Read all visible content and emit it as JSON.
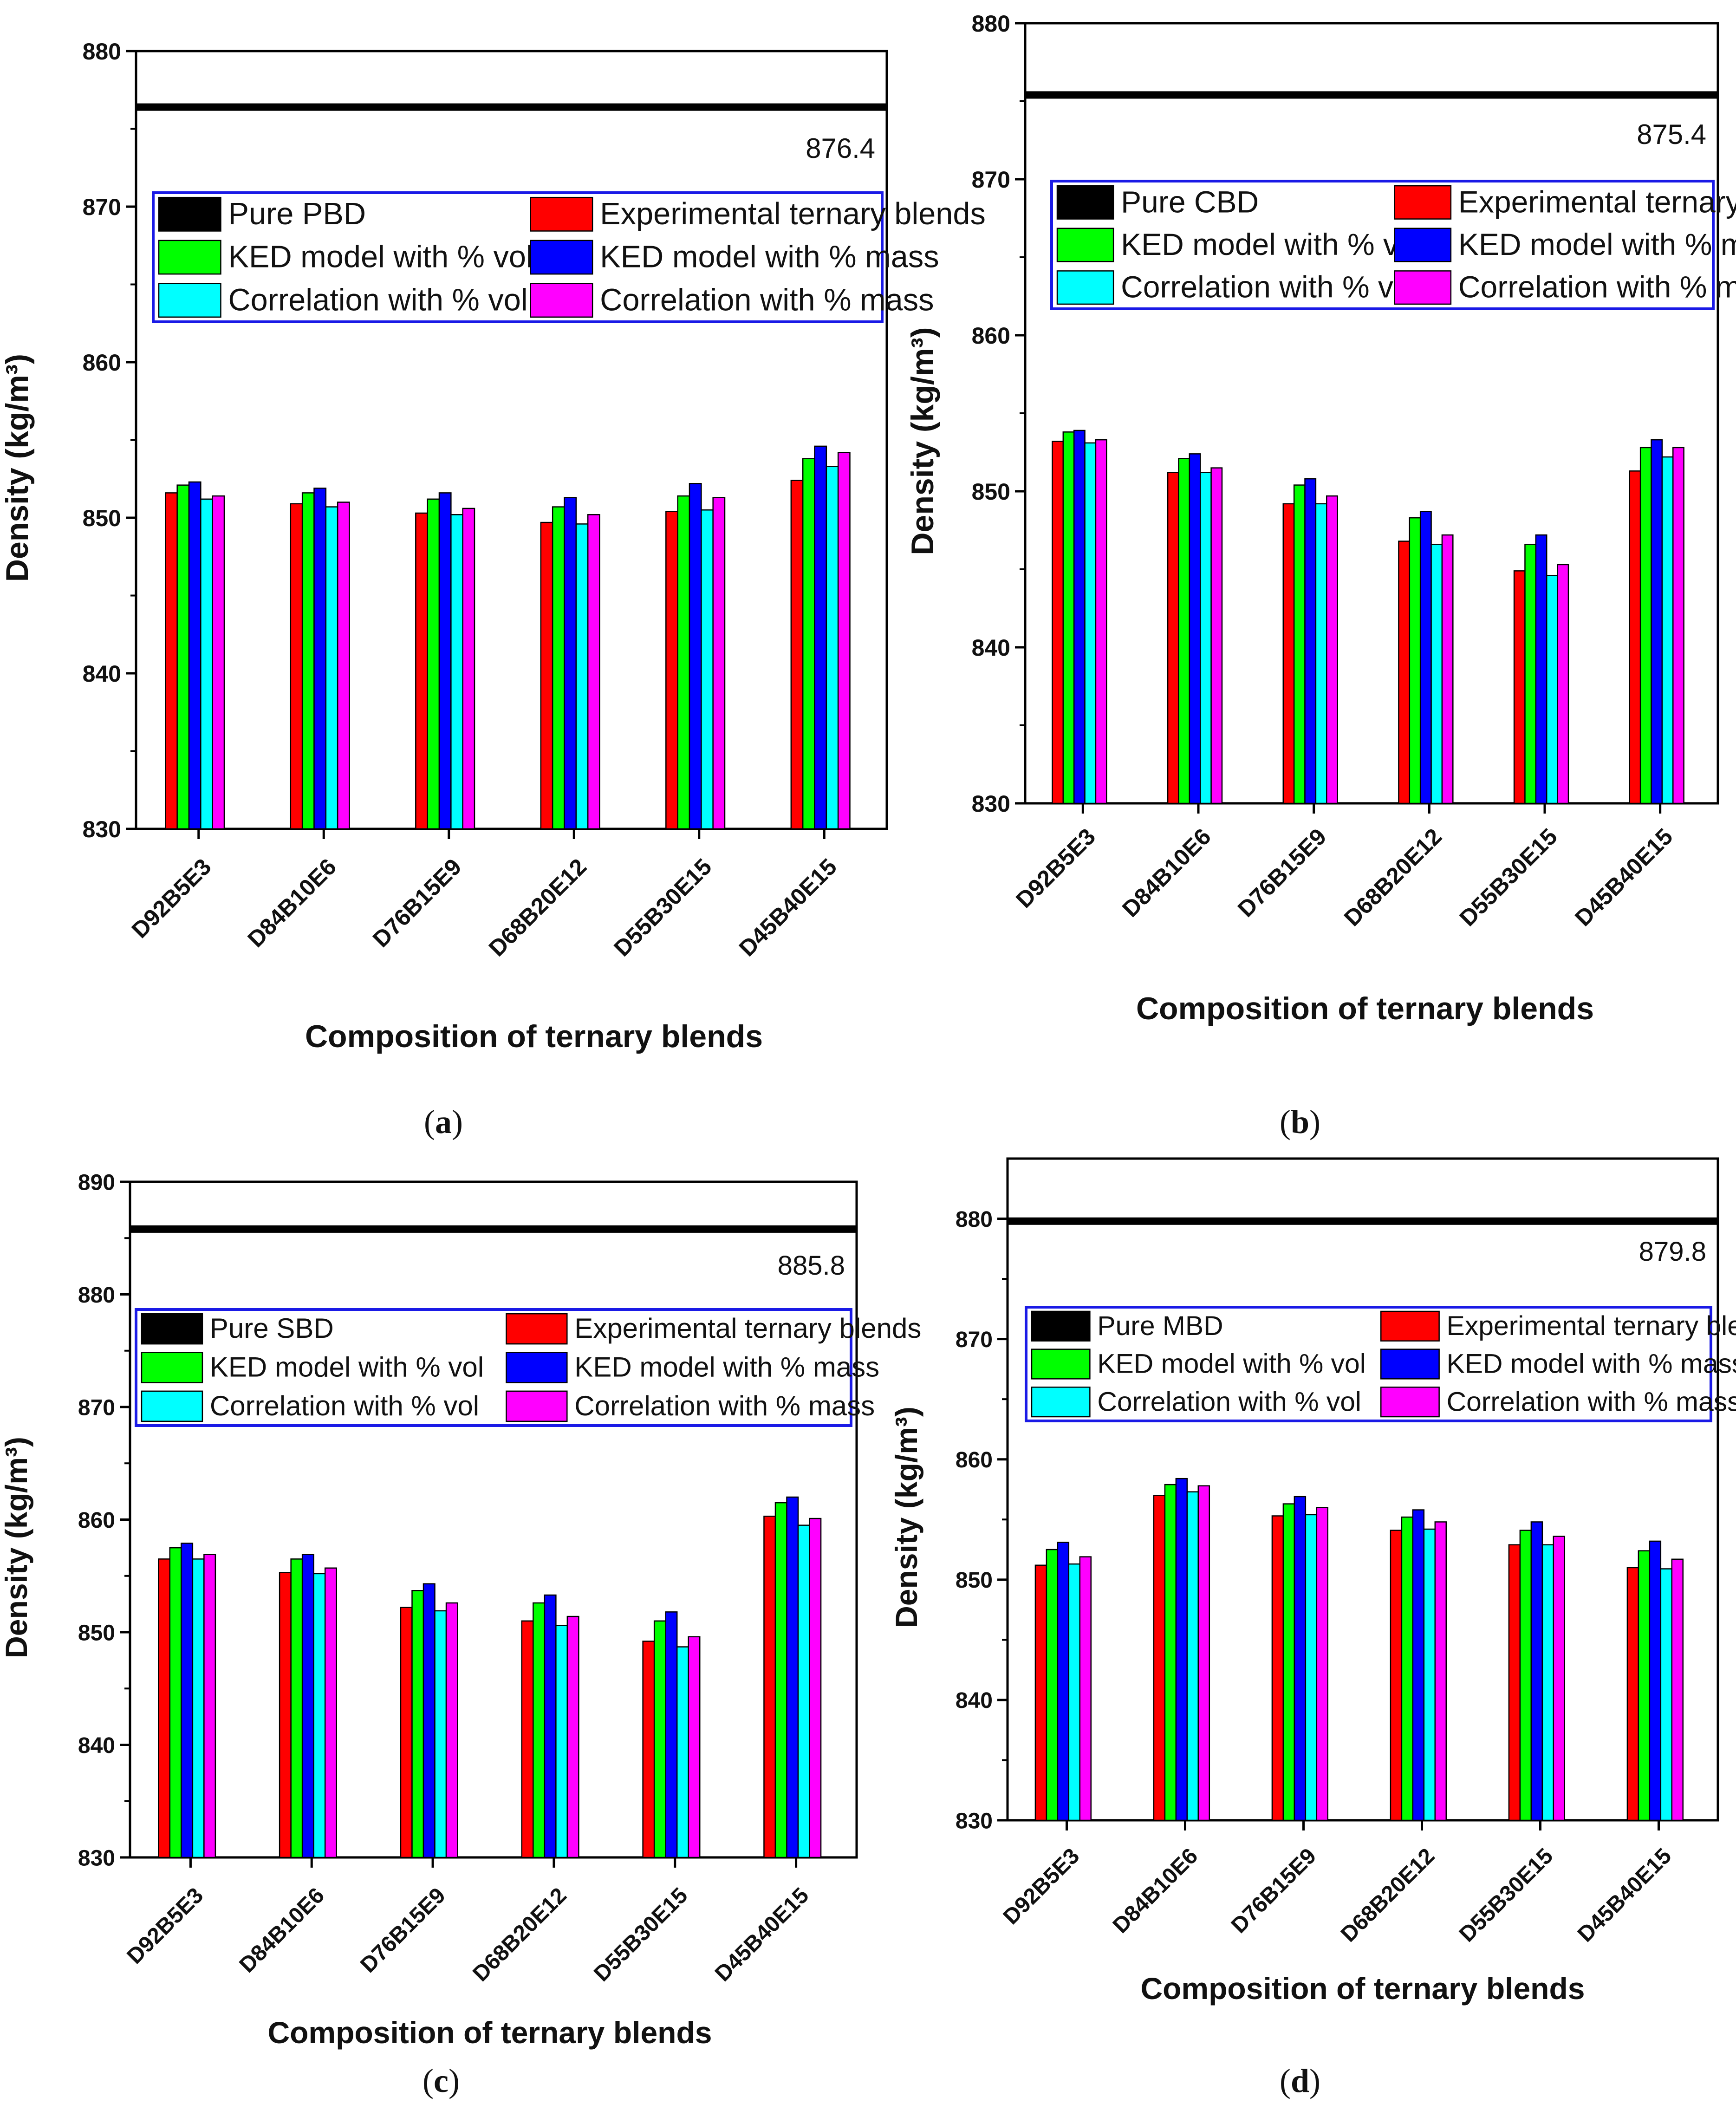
{
  "series_names": [
    "Experimental ternary blends",
    "KED model with % vol",
    "KED model with % mass",
    "Correlation with % vol",
    "Correlation with % mass"
  ],
  "colors": {
    "pure": "#000000",
    "experimental": "#ff0000",
    "ked_vol": "#00ff00",
    "ked_mass": "#0000ff",
    "corr_vol": "#00ffff",
    "corr_mass": "#ff00ff",
    "legend_border": "#1a1ae6"
  },
  "chart_data": [
    {
      "type": "bar",
      "panel_label": "a",
      "categories": [
        "D92B5E3",
        "D84B10E6",
        "D76B15E9",
        "D68B20E12",
        "D55B30E15",
        "D45B40E15"
      ],
      "xlabel": "Composition of ternary blends",
      "ylabel": "Density (kg/m³)",
      "ylim": [
        830,
        880
      ],
      "yticks": [
        830,
        840,
        850,
        860,
        870,
        880
      ],
      "reference": {
        "name": "Pure PBD",
        "value": 876.4,
        "label": "876.4"
      },
      "legend": [
        "Pure PBD",
        "Experimental ternary blends",
        "KED model with % vol",
        "KED model with % mass",
        "Correlation with % vol",
        "Correlation with % mass"
      ],
      "series": [
        {
          "name": "Experimental ternary blends",
          "values": [
            851.6,
            850.9,
            850.3,
            849.7,
            850.4,
            852.4
          ]
        },
        {
          "name": "KED model with % vol",
          "values": [
            852.1,
            851.6,
            851.2,
            850.7,
            851.4,
            853.8
          ]
        },
        {
          "name": "KED model with % mass",
          "values": [
            852.3,
            851.9,
            851.6,
            851.3,
            852.2,
            854.6
          ]
        },
        {
          "name": "Correlation with % vol",
          "values": [
            851.2,
            850.7,
            850.2,
            849.6,
            850.5,
            853.3
          ]
        },
        {
          "name": "Correlation with % mass",
          "values": [
            851.4,
            851.0,
            850.6,
            850.2,
            851.3,
            854.2
          ]
        }
      ]
    },
    {
      "type": "bar",
      "panel_label": "b",
      "categories": [
        "D92B5E3",
        "D84B10E6",
        "D76B15E9",
        "D68B20E12",
        "D55B30E15",
        "D45B40E15"
      ],
      "xlabel": "Composition of ternary blends",
      "ylabel": "Density (kg/m³)",
      "ylim": [
        830,
        880
      ],
      "yticks": [
        830,
        840,
        850,
        860,
        870,
        880
      ],
      "reference": {
        "name": "Pure CBD",
        "value": 875.4,
        "label": "875.4"
      },
      "legend": [
        "Pure CBD",
        "Experimental ternary blends",
        "KED model with % vol",
        "KED model with % mass",
        "Correlation with % vol",
        "Correlation with % mass"
      ],
      "series": [
        {
          "name": "Experimental ternary blends",
          "values": [
            853.2,
            851.2,
            849.2,
            846.8,
            844.9,
            851.3
          ]
        },
        {
          "name": "KED model with % vol",
          "values": [
            853.8,
            852.1,
            850.4,
            848.3,
            846.6,
            852.8
          ]
        },
        {
          "name": "KED model with % mass",
          "values": [
            853.9,
            852.4,
            850.8,
            848.7,
            847.2,
            853.3
          ]
        },
        {
          "name": "Correlation with % vol",
          "values": [
            853.1,
            851.2,
            849.2,
            846.6,
            844.6,
            852.2
          ]
        },
        {
          "name": "Correlation with % mass",
          "values": [
            853.3,
            851.5,
            849.7,
            847.2,
            845.3,
            852.8
          ]
        }
      ]
    },
    {
      "type": "bar",
      "panel_label": "c",
      "categories": [
        "D92B5E3",
        "D84B10E6",
        "D76B15E9",
        "D68B20E12",
        "D55B30E15",
        "D45B40E15"
      ],
      "xlabel": "Composition of ternary blends",
      "ylabel": "Density (kg/m³)",
      "ylim": [
        830,
        890
      ],
      "yticks": [
        830,
        840,
        850,
        860,
        870,
        880,
        890
      ],
      "reference": {
        "name": "Pure SBD",
        "value": 885.8,
        "label": "885.8"
      },
      "legend": [
        "Pure SBD",
        "Experimental ternary blends",
        "KED model with % vol",
        "KED model with % mass",
        "Correlation with % vol",
        "Correlation with % mass"
      ],
      "series": [
        {
          "name": "Experimental ternary blends",
          "values": [
            856.5,
            855.3,
            852.2,
            851.0,
            849.2,
            860.3
          ]
        },
        {
          "name": "KED model with % vol",
          "values": [
            857.5,
            856.5,
            853.7,
            852.6,
            851.0,
            861.5
          ]
        },
        {
          "name": "KED model with % mass",
          "values": [
            857.9,
            856.9,
            854.3,
            853.3,
            851.8,
            862.0
          ]
        },
        {
          "name": "Correlation with % vol",
          "values": [
            856.5,
            855.2,
            851.9,
            850.6,
            848.7,
            859.5
          ]
        },
        {
          "name": "Correlation with % mass",
          "values": [
            856.9,
            855.7,
            852.6,
            851.4,
            849.6,
            860.1
          ]
        }
      ]
    },
    {
      "type": "bar",
      "panel_label": "d",
      "categories": [
        "D92B5E3",
        "D84B10E6",
        "D76B15E9",
        "D68B20E12",
        "D55B30E15",
        "D45B40E15"
      ],
      "xlabel": "Composition of ternary blends",
      "ylabel": "Density (kg/m³)",
      "ylim": [
        830,
        885
      ],
      "yticks": [
        830,
        840,
        850,
        860,
        870,
        880
      ],
      "reference": {
        "name": "Pure MBD",
        "value": 879.8,
        "label": "879.8"
      },
      "legend": [
        "Pure MBD",
        "Experimental ternary blends",
        "KED model with % vol",
        "KED model with % mass",
        "Correlation with % vol",
        "Correlation with % mass"
      ],
      "series": [
        {
          "name": "Experimental ternary blends",
          "values": [
            851.2,
            857.0,
            855.3,
            854.1,
            852.9,
            851.0
          ]
        },
        {
          "name": "KED model with % vol",
          "values": [
            852.5,
            857.9,
            856.3,
            855.2,
            854.1,
            852.4
          ]
        },
        {
          "name": "KED model with % mass",
          "values": [
            853.1,
            858.4,
            856.9,
            855.8,
            854.8,
            853.2
          ]
        },
        {
          "name": "Correlation with % vol",
          "values": [
            851.3,
            857.3,
            855.4,
            854.2,
            852.9,
            850.9
          ]
        },
        {
          "name": "Correlation with % mass",
          "values": [
            851.9,
            857.8,
            856.0,
            854.8,
            853.6,
            851.7
          ]
        }
      ]
    }
  ]
}
